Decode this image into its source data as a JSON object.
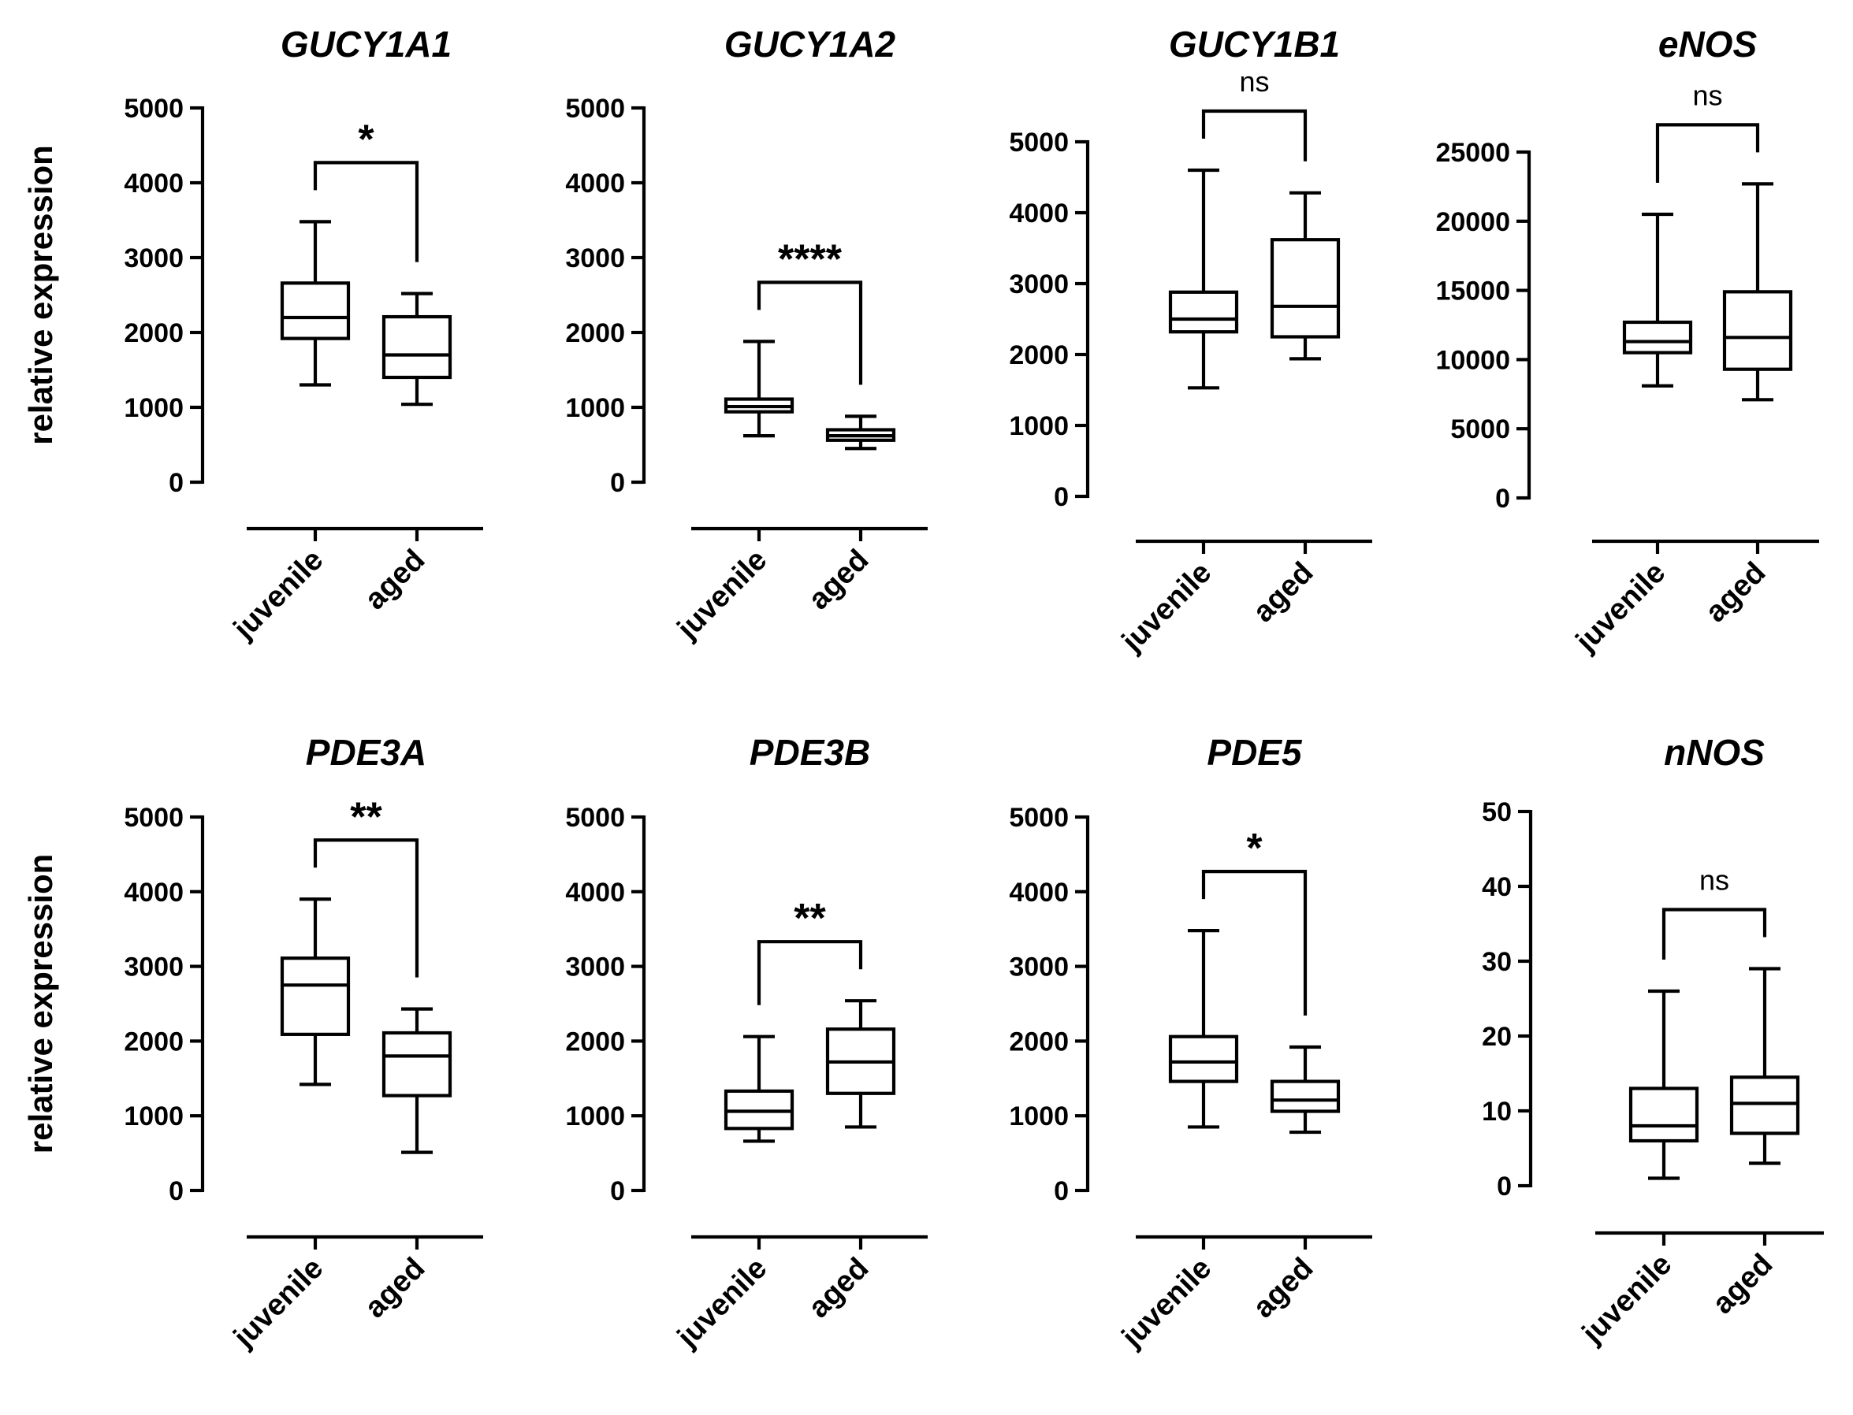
{
  "y_axis_label": "relative expression",
  "categories": [
    "juvenile",
    "aged"
  ],
  "chart_data": [
    {
      "type": "box",
      "title": "GUCY1A1",
      "ylim": [
        0,
        5000
      ],
      "ticks": [
        0,
        1000,
        2000,
        3000,
        4000,
        5000
      ],
      "ylabel": "relative expression",
      "significance": "*",
      "boxes": [
        {
          "category": "juvenile",
          "min": 1300,
          "q1": 1920,
          "median": 2200,
          "q3": 2660,
          "max": 3480
        },
        {
          "category": "aged",
          "min": 1040,
          "q1": 1400,
          "median": 1700,
          "q3": 2210,
          "max": 2520
        }
      ]
    },
    {
      "type": "box",
      "title": "GUCY1A2",
      "ylim": [
        0,
        5000
      ],
      "ticks": [
        0,
        1000,
        2000,
        3000,
        4000,
        5000
      ],
      "ylabel": "",
      "significance": "****",
      "boxes": [
        {
          "category": "juvenile",
          "min": 620,
          "q1": 940,
          "median": 1010,
          "q3": 1110,
          "max": 1880
        },
        {
          "category": "aged",
          "min": 450,
          "q1": 560,
          "median": 620,
          "q3": 700,
          "max": 880
        }
      ]
    },
    {
      "type": "box",
      "title": "GUCY1B1",
      "ylim": [
        0,
        5000
      ],
      "ticks": [
        0,
        1000,
        2000,
        3000,
        4000,
        5000
      ],
      "ylabel": "",
      "significance": "ns",
      "boxes": [
        {
          "category": "juvenile",
          "min": 1530,
          "q1": 2320,
          "median": 2500,
          "q3": 2880,
          "max": 4600
        },
        {
          "category": "aged",
          "min": 1940,
          "q1": 2250,
          "median": 2680,
          "q3": 3620,
          "max": 4280
        }
      ]
    },
    {
      "type": "box",
      "title": "eNOS",
      "ylim": [
        0,
        25000
      ],
      "ticks": [
        0,
        5000,
        10000,
        15000,
        20000,
        25000
      ],
      "ylabel": "",
      "significance": "ns",
      "boxes": [
        {
          "category": "juvenile",
          "min": 8100,
          "q1": 10500,
          "median": 11300,
          "q3": 12700,
          "max": 20500
        },
        {
          "category": "aged",
          "min": 7100,
          "q1": 9300,
          "median": 11600,
          "q3": 14900,
          "max": 22700
        }
      ]
    },
    {
      "type": "box",
      "title": "PDE3A",
      "ylim": [
        0,
        5000
      ],
      "ticks": [
        0,
        1000,
        2000,
        3000,
        4000,
        5000
      ],
      "ylabel": "relative expression",
      "significance": "**",
      "boxes": [
        {
          "category": "juvenile",
          "min": 1420,
          "q1": 2090,
          "median": 2750,
          "q3": 3110,
          "max": 3900
        },
        {
          "category": "aged",
          "min": 510,
          "q1": 1270,
          "median": 1800,
          "q3": 2110,
          "max": 2430
        }
      ]
    },
    {
      "type": "box",
      "title": "PDE3B",
      "ylim": [
        0,
        5000
      ],
      "ticks": [
        0,
        1000,
        2000,
        3000,
        4000,
        5000
      ],
      "ylabel": "",
      "significance": "**",
      "boxes": [
        {
          "category": "juvenile",
          "min": 660,
          "q1": 830,
          "median": 1060,
          "q3": 1330,
          "max": 2060
        },
        {
          "category": "aged",
          "min": 850,
          "q1": 1300,
          "median": 1720,
          "q3": 2160,
          "max": 2540
        }
      ]
    },
    {
      "type": "box",
      "title": "PDE5",
      "ylim": [
        0,
        5000
      ],
      "ticks": [
        0,
        1000,
        2000,
        3000,
        4000,
        5000
      ],
      "ylabel": "",
      "significance": "*",
      "boxes": [
        {
          "category": "juvenile",
          "min": 850,
          "q1": 1460,
          "median": 1720,
          "q3": 2060,
          "max": 3480
        },
        {
          "category": "aged",
          "min": 780,
          "q1": 1060,
          "median": 1210,
          "q3": 1460,
          "max": 1920
        }
      ]
    },
    {
      "type": "box",
      "title": "nNOS",
      "ylim": [
        0,
        50
      ],
      "ticks": [
        0,
        10,
        20,
        30,
        40,
        50
      ],
      "ylabel": "",
      "significance": "ns",
      "boxes": [
        {
          "category": "juvenile",
          "min": 1,
          "q1": 6,
          "median": 8,
          "q3": 13,
          "max": 26
        },
        {
          "category": "aged",
          "min": 3,
          "q1": 7,
          "median": 11,
          "q3": 14.5,
          "max": 29
        }
      ]
    }
  ]
}
